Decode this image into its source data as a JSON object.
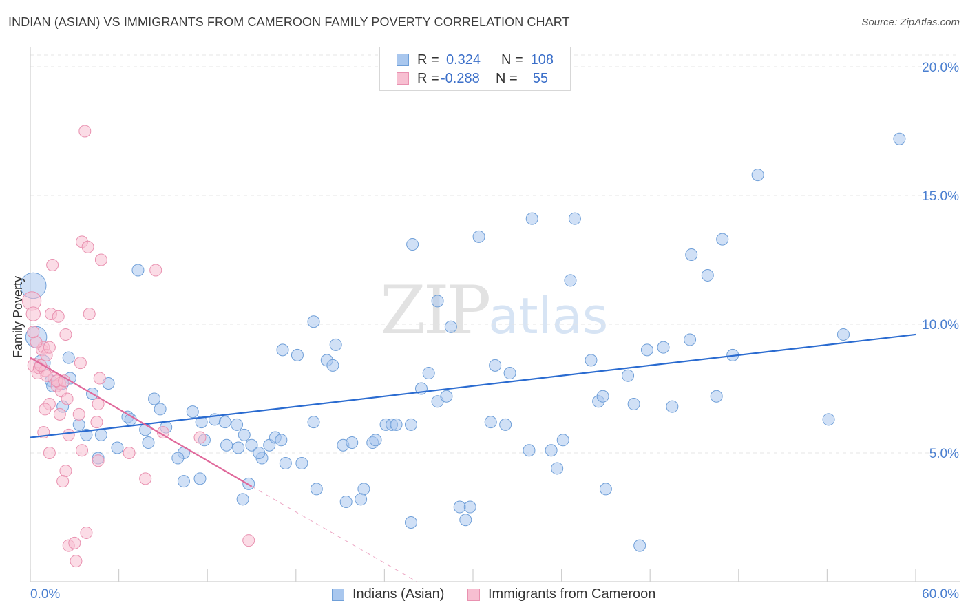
{
  "header": {
    "title": "INDIAN (ASIAN) VS IMMIGRANTS FROM CAMEROON FAMILY POVERTY CORRELATION CHART",
    "source": "Source: ZipAtlas.com"
  },
  "watermark": {
    "zip": "ZIP",
    "atlas": "atlas"
  },
  "legend": {
    "rows": [
      {
        "r_label": "R =",
        "r_value": "0.324",
        "n_label": "N =",
        "n_value": "108",
        "color": "#a9c7ee",
        "border": "#6f9fd8"
      },
      {
        "r_label": "R =",
        "r_value": "-0.288",
        "n_label": "N =",
        "n_value": "55",
        "color": "#f7bfd1",
        "border": "#e991b0"
      }
    ]
  },
  "bottom_legend": {
    "items": [
      {
        "label": "Indians (Asian)",
        "color": "#a9c7ee",
        "border": "#6f9fd8"
      },
      {
        "label": "Immigrants from Cameroon",
        "color": "#f7bfd1",
        "border": "#e991b0"
      }
    ]
  },
  "chart_data": {
    "type": "scatter",
    "title": "INDIAN (ASIAN) VS IMMIGRANTS FROM CAMEROON FAMILY POVERTY CORRELATION CHART",
    "xlabel": "",
    "ylabel": "Family Poverty",
    "xlim": [
      0,
      60
    ],
    "ylim": [
      0,
      20
    ],
    "x_tick_labels": [
      "0.0%",
      "60.0%"
    ],
    "y_ticks": [
      5,
      10,
      15,
      20
    ],
    "y_tick_labels": [
      "5.0%",
      "10.0%",
      "15.0%",
      "20.0%"
    ],
    "grid": "horizontal dashed",
    "series": [
      {
        "name": "Indians (Asian)",
        "color": "#a9c7ee",
        "stroke": "#6f9fd8",
        "trend": {
          "x0": 0,
          "y0": 5.6,
          "x1": 60,
          "y1": 9.6,
          "color": "#2a6bd0"
        },
        "points": [
          [
            0.2,
            11.5,
            2.2
          ],
          [
            0.4,
            9.5,
            1.8
          ],
          [
            0.8,
            8.5,
            1.4
          ],
          [
            2.6,
            8.7,
            1
          ],
          [
            2.7,
            7.9,
            1
          ],
          [
            1.4,
            7.8,
            1
          ],
          [
            2.2,
            7.7,
            1
          ],
          [
            1.5,
            7.6,
            1
          ],
          [
            5.3,
            7.7,
            1
          ],
          [
            7.3,
            12.1,
            1
          ],
          [
            4.2,
            7.3,
            1
          ],
          [
            2.2,
            6.8,
            1
          ],
          [
            8.4,
            7.1,
            1
          ],
          [
            8.8,
            6.7,
            1
          ],
          [
            6.6,
            6.4,
            1
          ],
          [
            6.8,
            6.3,
            1
          ],
          [
            3.3,
            6.1,
            1
          ],
          [
            9.2,
            6.0,
            1
          ],
          [
            11.0,
            6.6,
            1
          ],
          [
            11.6,
            6.2,
            1
          ],
          [
            12.5,
            6.3,
            1
          ],
          [
            13.2,
            6.2,
            1
          ],
          [
            14.0,
            6.1,
            1
          ],
          [
            3.8,
            5.7,
            1
          ],
          [
            4.8,
            5.7,
            1
          ],
          [
            7.8,
            5.9,
            1
          ],
          [
            10.4,
            5.0,
            1
          ],
          [
            5.9,
            5.2,
            1
          ],
          [
            8.0,
            5.4,
            1
          ],
          [
            11.8,
            5.5,
            1
          ],
          [
            13.3,
            5.3,
            1
          ],
          [
            14.1,
            5.2,
            1
          ],
          [
            14.5,
            5.7,
            1
          ],
          [
            15.0,
            5.3,
            1
          ],
          [
            15.7,
            4.8,
            1
          ],
          [
            16.2,
            5.3,
            1
          ],
          [
            16.6,
            5.6,
            1
          ],
          [
            17.0,
            5.5,
            1
          ],
          [
            17.3,
            4.6,
            1
          ],
          [
            18.4,
            4.6,
            1
          ],
          [
            4.6,
            4.8,
            1
          ],
          [
            10.0,
            4.8,
            1
          ],
          [
            10.4,
            3.9,
            1
          ],
          [
            11.5,
            4.0,
            1
          ],
          [
            14.8,
            3.8,
            1
          ],
          [
            14.4,
            3.2,
            1
          ],
          [
            15.5,
            5.0,
            1
          ],
          [
            18.1,
            8.8,
            1
          ],
          [
            17.1,
            9.0,
            1
          ],
          [
            19.2,
            6.2,
            1
          ],
          [
            19.4,
            3.6,
            1
          ],
          [
            19.2,
            10.1,
            1
          ],
          [
            20.1,
            8.6,
            1
          ],
          [
            20.5,
            8.4,
            1
          ],
          [
            20.7,
            9.2,
            1
          ],
          [
            21.2,
            5.3,
            1
          ],
          [
            21.8,
            5.4,
            1
          ],
          [
            22.6,
            3.6,
            1
          ],
          [
            21.4,
            3.1,
            1
          ],
          [
            22.4,
            3.2,
            1
          ],
          [
            23.2,
            5.4,
            1
          ],
          [
            23.4,
            5.5,
            1
          ],
          [
            24.1,
            6.1,
            1
          ],
          [
            24.5,
            6.1,
            1
          ],
          [
            24.8,
            6.1,
            1
          ],
          [
            25.8,
            6.1,
            1
          ],
          [
            25.8,
            2.3,
            1
          ],
          [
            25.9,
            13.1,
            1
          ],
          [
            26.5,
            7.5,
            1
          ],
          [
            27.0,
            8.1,
            1
          ],
          [
            27.6,
            7.0,
            1
          ],
          [
            27.6,
            10.9,
            1
          ],
          [
            28.2,
            7.2,
            1
          ],
          [
            28.5,
            9.9,
            1
          ],
          [
            29.1,
            2.9,
            1
          ],
          [
            29.5,
            2.4,
            1
          ],
          [
            29.8,
            2.9,
            1
          ],
          [
            30.4,
            13.4,
            1
          ],
          [
            31.2,
            6.2,
            1
          ],
          [
            31.5,
            8.4,
            1
          ],
          [
            32.2,
            6.1,
            1
          ],
          [
            32.5,
            8.1,
            1
          ],
          [
            33.8,
            5.1,
            1
          ],
          [
            34.0,
            14.1,
            1
          ],
          [
            35.3,
            5.1,
            1
          ],
          [
            35.7,
            4.4,
            1
          ],
          [
            36.1,
            5.5,
            1
          ],
          [
            36.6,
            11.7,
            1
          ],
          [
            36.9,
            14.1,
            1
          ],
          [
            38.0,
            8.6,
            1
          ],
          [
            38.5,
            7.0,
            1
          ],
          [
            38.8,
            7.2,
            1
          ],
          [
            39.0,
            3.6,
            1
          ],
          [
            40.5,
            8.0,
            1
          ],
          [
            40.9,
            6.9,
            1
          ],
          [
            41.3,
            1.4,
            1
          ],
          [
            41.8,
            9.0,
            1
          ],
          [
            42.9,
            9.1,
            1
          ],
          [
            43.5,
            6.8,
            1
          ],
          [
            44.7,
            9.4,
            1
          ],
          [
            44.8,
            12.7,
            1
          ],
          [
            45.9,
            11.9,
            1
          ],
          [
            46.9,
            13.3,
            1
          ],
          [
            46.5,
            7.2,
            1
          ],
          [
            47.6,
            8.8,
            1
          ],
          [
            49.3,
            15.8,
            1
          ],
          [
            54.1,
            6.3,
            1
          ],
          [
            55.1,
            9.6,
            1
          ],
          [
            58.9,
            17.2,
            1
          ]
        ]
      },
      {
        "name": "Immigrants from Cameroon",
        "color": "#f7bfd1",
        "stroke": "#e991b0",
        "trend": {
          "x0": 0,
          "y0": 8.7,
          "x1": 15.0,
          "y1": 3.7,
          "color": "#e0699b",
          "dash_to": {
            "x": 26.2,
            "y": 0.0
          }
        },
        "points": [
          [
            0.1,
            10.9,
            1.6
          ],
          [
            0.2,
            10.4,
            1.2
          ],
          [
            0.3,
            8.4,
            1.2
          ],
          [
            0.5,
            8.1,
            1
          ],
          [
            0.6,
            8.3,
            1
          ],
          [
            0.8,
            9.0,
            1
          ],
          [
            0.9,
            9.1,
            1
          ],
          [
            1.0,
            8.2,
            1
          ],
          [
            1.1,
            8.8,
            1
          ],
          [
            1.3,
            9.1,
            1
          ],
          [
            1.4,
            10.4,
            1
          ],
          [
            1.5,
            12.3,
            1
          ],
          [
            1.6,
            7.9,
            1
          ],
          [
            1.8,
            7.6,
            1
          ],
          [
            1.9,
            10.3,
            1
          ],
          [
            2.0,
            7.7,
            1
          ],
          [
            2.1,
            7.4,
            1
          ],
          [
            2.4,
            9.6,
            1
          ],
          [
            2.5,
            7.1,
            1
          ],
          [
            1.3,
            6.9,
            1
          ],
          [
            1.0,
            6.7,
            1
          ],
          [
            2.0,
            6.5,
            1
          ],
          [
            3.3,
            6.5,
            1
          ],
          [
            3.4,
            8.5,
            1
          ],
          [
            3.5,
            13.2,
            1
          ],
          [
            3.7,
            17.5,
            1
          ],
          [
            3.9,
            13.0,
            1
          ],
          [
            4.0,
            10.4,
            1
          ],
          [
            4.5,
            6.2,
            1
          ],
          [
            4.6,
            6.9,
            1
          ],
          [
            4.6,
            4.7,
            1
          ],
          [
            4.7,
            7.9,
            1
          ],
          [
            4.8,
            12.5,
            1
          ],
          [
            2.6,
            5.7,
            1
          ],
          [
            1.3,
            5.0,
            1
          ],
          [
            2.4,
            4.3,
            1
          ],
          [
            2.2,
            3.9,
            1
          ],
          [
            3.5,
            5.1,
            1
          ],
          [
            3.8,
            1.9,
            1
          ],
          [
            2.6,
            1.4,
            1
          ],
          [
            3.0,
            1.5,
            1
          ],
          [
            3.1,
            0.8,
            1
          ],
          [
            6.7,
            5.0,
            1
          ],
          [
            7.8,
            4.0,
            1
          ],
          [
            8.5,
            12.1,
            1
          ],
          [
            9.0,
            5.8,
            1
          ],
          [
            11.5,
            5.6,
            1
          ],
          [
            14.8,
            1.6,
            1
          ],
          [
            0.4,
            9.3,
            1
          ],
          [
            0.7,
            8.4,
            1
          ],
          [
            1.1,
            8.0,
            1
          ],
          [
            1.8,
            7.8,
            1
          ],
          [
            2.3,
            7.8,
            1
          ],
          [
            0.9,
            5.8,
            1
          ],
          [
            0.2,
            9.7,
            1
          ]
        ]
      }
    ]
  }
}
